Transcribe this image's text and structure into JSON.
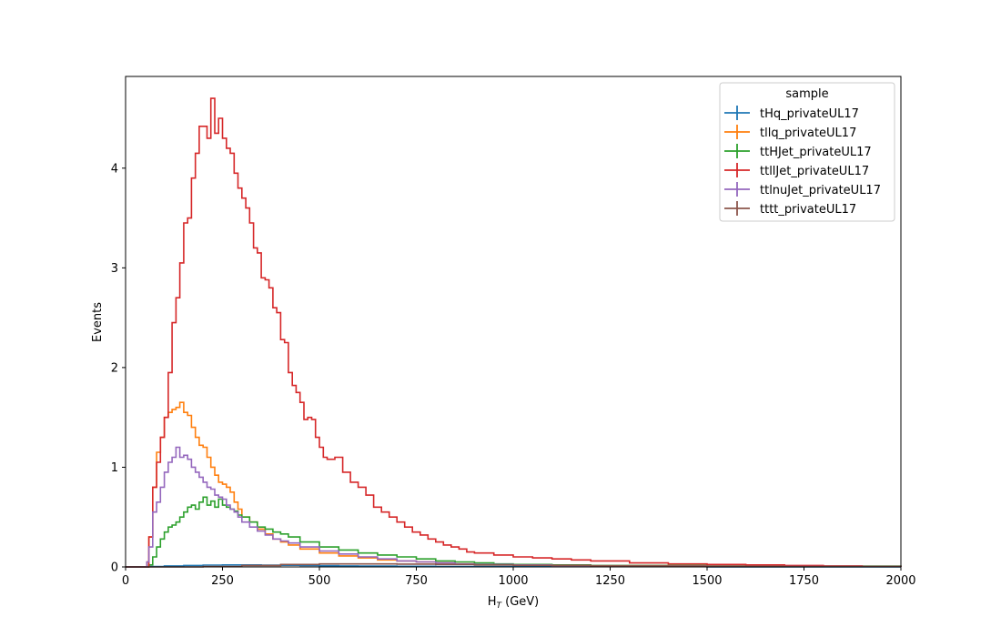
{
  "chart_data": {
    "type": "line",
    "drawstyle": "step histogram",
    "xlabel_main": "H",
    "xlabel_sub": "T",
    "xlabel_unit": " (GeV)",
    "ylabel": "Events",
    "xlim": [
      0,
      2000
    ],
    "ylim": [
      0,
      4.92
    ],
    "xticks": [
      0,
      250,
      500,
      750,
      1000,
      1250,
      1500,
      1750,
      2000
    ],
    "yticks": [
      0,
      1,
      2,
      3,
      4
    ],
    "grid": false,
    "legend": {
      "title": "sample",
      "placement": "top-right"
    },
    "series": [
      {
        "name": "tHq_privateUL17",
        "color": "#1f77b4",
        "x": [
          0,
          60,
          100,
          150,
          200,
          250,
          300,
          350,
          400,
          450,
          500,
          550,
          600,
          700,
          800,
          1000,
          1500,
          2000
        ],
        "values": [
          0,
          0.005,
          0.01,
          0.015,
          0.018,
          0.02,
          0.02,
          0.018,
          0.016,
          0.014,
          0.012,
          0.01,
          0.008,
          0.006,
          0.004,
          0.003,
          0.001,
          0
        ]
      },
      {
        "name": "tllq_privateUL17",
        "color": "#ff7f0e",
        "x": [
          0,
          55,
          60,
          70,
          80,
          90,
          100,
          110,
          120,
          130,
          140,
          150,
          160,
          170,
          180,
          190,
          200,
          210,
          220,
          230,
          240,
          250,
          260,
          270,
          280,
          290,
          300,
          320,
          340,
          360,
          380,
          400,
          420,
          450,
          500,
          550,
          600,
          650,
          700,
          750,
          800,
          850,
          900,
          1000,
          1100,
          1200,
          1500,
          2000
        ],
        "values": [
          0,
          0.05,
          0.3,
          0.8,
          1.15,
          1.3,
          1.5,
          1.55,
          1.58,
          1.6,
          1.65,
          1.55,
          1.52,
          1.4,
          1.3,
          1.22,
          1.2,
          1.1,
          1.0,
          0.92,
          0.85,
          0.83,
          0.8,
          0.75,
          0.65,
          0.58,
          0.5,
          0.45,
          0.38,
          0.33,
          0.28,
          0.25,
          0.22,
          0.18,
          0.14,
          0.11,
          0.09,
          0.07,
          0.06,
          0.05,
          0.04,
          0.03,
          0.025,
          0.02,
          0.015,
          0.01,
          0.005,
          0
        ]
      },
      {
        "name": "ttHJet_privateUL17",
        "color": "#2ca02c",
        "x": [
          0,
          60,
          70,
          80,
          90,
          100,
          110,
          120,
          130,
          140,
          150,
          160,
          170,
          180,
          190,
          200,
          210,
          220,
          230,
          240,
          250,
          260,
          270,
          280,
          290,
          300,
          320,
          340,
          360,
          380,
          400,
          420,
          450,
          500,
          550,
          600,
          650,
          700,
          750,
          800,
          850,
          900,
          950,
          1000,
          1100,
          1200,
          1500,
          2000
        ],
        "values": [
          0,
          0.02,
          0.1,
          0.2,
          0.28,
          0.35,
          0.4,
          0.42,
          0.45,
          0.5,
          0.55,
          0.6,
          0.62,
          0.58,
          0.65,
          0.7,
          0.62,
          0.66,
          0.6,
          0.68,
          0.62,
          0.6,
          0.58,
          0.56,
          0.52,
          0.5,
          0.45,
          0.4,
          0.38,
          0.35,
          0.33,
          0.3,
          0.25,
          0.2,
          0.17,
          0.14,
          0.12,
          0.1,
          0.08,
          0.06,
          0.05,
          0.04,
          0.03,
          0.025,
          0.02,
          0.015,
          0.008,
          0
        ]
      },
      {
        "name": "ttllJet_privateUL17",
        "color": "#d62728",
        "x": [
          0,
          60,
          70,
          80,
          90,
          100,
          110,
          120,
          130,
          140,
          150,
          160,
          170,
          180,
          190,
          200,
          210,
          220,
          230,
          240,
          250,
          260,
          270,
          280,
          290,
          300,
          310,
          320,
          330,
          340,
          350,
          360,
          370,
          380,
          390,
          400,
          410,
          420,
          430,
          440,
          450,
          460,
          470,
          480,
          490,
          500,
          510,
          520,
          540,
          560,
          580,
          600,
          620,
          640,
          660,
          680,
          700,
          720,
          740,
          760,
          780,
          800,
          820,
          840,
          860,
          880,
          900,
          950,
          1000,
          1050,
          1100,
          1150,
          1200,
          1300,
          1400,
          1500,
          1600,
          1700,
          1800,
          1900,
          2000
        ],
        "values": [
          0,
          0.3,
          0.8,
          1.05,
          1.3,
          1.5,
          1.95,
          2.45,
          2.7,
          3.05,
          3.45,
          3.5,
          3.9,
          4.15,
          4.42,
          4.42,
          4.3,
          4.7,
          4.35,
          4.5,
          4.3,
          4.2,
          4.15,
          3.95,
          3.8,
          3.7,
          3.6,
          3.45,
          3.2,
          3.15,
          2.9,
          2.88,
          2.8,
          2.6,
          2.55,
          2.28,
          2.25,
          1.95,
          1.82,
          1.75,
          1.65,
          1.48,
          1.5,
          1.48,
          1.3,
          1.2,
          1.1,
          1.08,
          1.1,
          0.95,
          0.85,
          0.8,
          0.72,
          0.6,
          0.55,
          0.5,
          0.45,
          0.4,
          0.35,
          0.32,
          0.28,
          0.25,
          0.22,
          0.2,
          0.18,
          0.15,
          0.14,
          0.12,
          0.1,
          0.09,
          0.08,
          0.07,
          0.06,
          0.04,
          0.03,
          0.025,
          0.02,
          0.015,
          0.01,
          0.005,
          0
        ]
      },
      {
        "name": "ttlnuJet_privateUL17",
        "color": "#9467bd",
        "x": [
          0,
          55,
          60,
          70,
          80,
          90,
          100,
          110,
          120,
          130,
          140,
          150,
          160,
          170,
          180,
          190,
          200,
          210,
          220,
          230,
          240,
          250,
          260,
          270,
          280,
          290,
          300,
          320,
          340,
          360,
          380,
          400,
          420,
          450,
          500,
          550,
          600,
          650,
          700,
          750,
          800,
          850,
          900,
          1000,
          1100,
          1200,
          1500,
          2000
        ],
        "values": [
          0,
          0.05,
          0.2,
          0.55,
          0.65,
          0.8,
          0.95,
          1.05,
          1.1,
          1.2,
          1.1,
          1.12,
          1.08,
          1.0,
          0.95,
          0.9,
          0.85,
          0.8,
          0.78,
          0.72,
          0.7,
          0.68,
          0.62,
          0.58,
          0.55,
          0.5,
          0.45,
          0.4,
          0.36,
          0.32,
          0.28,
          0.26,
          0.24,
          0.2,
          0.16,
          0.13,
          0.1,
          0.08,
          0.06,
          0.05,
          0.04,
          0.03,
          0.025,
          0.02,
          0.015,
          0.01,
          0.005,
          0
        ]
      },
      {
        "name": "tttt_privateUL17",
        "color": "#8c564b",
        "x": [
          0,
          200,
          300,
          400,
          500,
          600,
          700,
          800,
          900,
          1000,
          1200,
          1400,
          1600,
          2000
        ],
        "values": [
          0,
          0.005,
          0.015,
          0.025,
          0.03,
          0.03,
          0.028,
          0.025,
          0.02,
          0.016,
          0.012,
          0.008,
          0.005,
          0
        ]
      }
    ]
  }
}
